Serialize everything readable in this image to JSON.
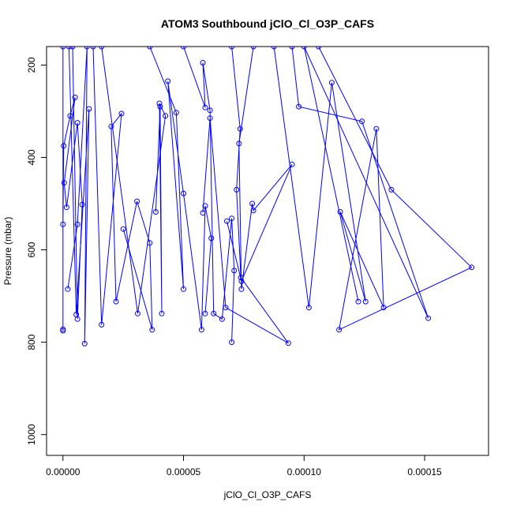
{
  "chart_data": {
    "type": "line",
    "title": "ATOM3 Southbound jClO_Cl_O3P_CAFS",
    "xlabel": "jClO_Cl_O3P_CAFS",
    "ylabel": "Pressure (mbar)",
    "xlim": [
      -6.8e-06,
      0.0001765
    ],
    "ylim": [
      1045,
      160
    ],
    "y_reversed": true,
    "grid": false,
    "line_color": "#0000ff",
    "marker": "open-circle",
    "x_ticks": [
      {
        "value": 0,
        "label": "0.00000"
      },
      {
        "value": 5e-05,
        "label": "0.00005"
      },
      {
        "value": 0.0001,
        "label": "0.00010"
      },
      {
        "value": 0.00015,
        "label": "0.00015"
      }
    ],
    "y_ticks": [
      {
        "value": 200,
        "label": "200"
      },
      {
        "value": 400,
        "label": "400"
      },
      {
        "value": 600,
        "label": "600"
      },
      {
        "value": 800,
        "label": "800"
      },
      {
        "value": 1000,
        "label": "1000"
      }
    ],
    "series": [
      {
        "x": [
          0.0,
          0.0,
          0.0,
          0.0,
          3e-07,
          3e-06,
          5e-06,
          5e-07,
          1.5e-06,
          6e-06,
          8e-06,
          6e-06,
          4e-06
        ],
        "y": [
          160,
          775,
          772,
          545,
          375,
          310,
          270,
          455,
          508,
          325,
          502,
          750,
          160
        ]
      },
      {
        "x": [
          2.5e-06,
          5.5e-06,
          1.08e-05,
          9e-06,
          1e-05,
          6e-06,
          2e-06
        ],
        "y": [
          160,
          740,
          295,
          803,
          160,
          545,
          685
        ]
      },
      {
        "x": [
          1.25e-05,
          1.6e-05,
          2.43e-05,
          2e-05,
          2.2e-05,
          3.07e-05,
          3.6e-05,
          3.7e-05,
          2.5e-05
        ],
        "y": [
          160,
          762,
          305,
          333,
          712,
          495,
          585,
          773,
          555
        ]
      },
      {
        "x": [
          1.6e-05,
          3.1e-05,
          4.25e-05,
          4e-05,
          4.1e-05,
          4.03e-05,
          3.85e-05
        ],
        "y": [
          160,
          738,
          310,
          283,
          738,
          290,
          518
        ]
      },
      {
        "x": [
          3.6e-05,
          4.7e-05,
          5e-05,
          4.35e-05,
          5e-05,
          5.75e-05,
          5.9e-05,
          6.15e-05,
          5.9e-05
        ],
        "y": [
          160,
          303,
          685,
          235,
          478,
          773,
          505,
          575,
          738
        ]
      },
      {
        "x": [
          5e-05,
          5.9e-05,
          5.8e-05,
          6.1e-05,
          6.25e-05,
          6.6e-05,
          7e-05,
          7.1e-05,
          7e-05
        ],
        "y": [
          160,
          292,
          195,
          298,
          738,
          750,
          532,
          645,
          800
        ]
      },
      {
        "x": [
          7e-05,
          7.35e-05,
          7.2e-05,
          7.38e-05,
          9.35e-05,
          6.75e-05,
          6.1e-05,
          5.8e-05
        ],
        "y": [
          160,
          338,
          470,
          660,
          802,
          725,
          315,
          520
        ]
      },
      {
        "x": [
          7.9e-05,
          7.3e-05,
          7.4e-05,
          7.85e-05,
          7.9e-05,
          9.5e-05,
          7.4e-05,
          6.8e-05
        ],
        "y": [
          160,
          370,
          685,
          500,
          515,
          415,
          668,
          538
        ]
      },
      {
        "x": [
          8.75e-05,
          0.000102,
          0.0001115,
          0.0001255,
          0.000115,
          0.000133,
          0.00013,
          0.0001145,
          0.0001695,
          0.0001362,
          0.000106
        ],
        "y": [
          160,
          725,
          238,
          712,
          518,
          725,
          338,
          773,
          638,
          470,
          160
        ]
      },
      {
        "x": [
          9.5e-05,
          9.78e-05,
          0.000124,
          0.0001515,
          0.0001,
          0.0001225
        ],
        "y": [
          160,
          290,
          322,
          748,
          160,
          712
        ]
      }
    ]
  }
}
